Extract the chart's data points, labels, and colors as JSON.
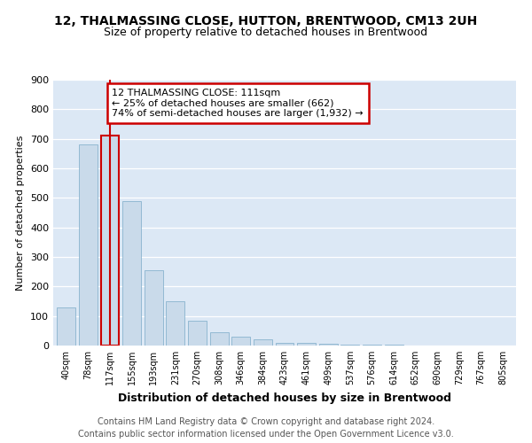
{
  "title": "12, THALMASSING CLOSE, HUTTON, BRENTWOOD, CM13 2UH",
  "subtitle": "Size of property relative to detached houses in Brentwood",
  "xlabel": "Distribution of detached houses by size in Brentwood",
  "ylabel": "Number of detached properties",
  "footer_line1": "Contains HM Land Registry data © Crown copyright and database right 2024.",
  "footer_line2": "Contains public sector information licensed under the Open Government Licence v3.0.",
  "bar_labels": [
    "40sqm",
    "78sqm",
    "117sqm",
    "155sqm",
    "193sqm",
    "231sqm",
    "270sqm",
    "308sqm",
    "346sqm",
    "384sqm",
    "423sqm",
    "461sqm",
    "499sqm",
    "537sqm",
    "576sqm",
    "614sqm",
    "652sqm",
    "690sqm",
    "729sqm",
    "767sqm",
    "805sqm"
  ],
  "bar_values": [
    130,
    680,
    710,
    490,
    255,
    150,
    85,
    45,
    30,
    20,
    10,
    8,
    5,
    4,
    3,
    2,
    1,
    1,
    1,
    1,
    0
  ],
  "bar_color": "#c9daea",
  "bar_edge_color": "#7aaac8",
  "highlight_bar_index": 2,
  "highlight_color": "#cc0000",
  "annotation_text": "12 THALMASSING CLOSE: 111sqm\n← 25% of detached houses are smaller (662)\n74% of semi-detached houses are larger (1,932) →",
  "annotation_box_color": "#cc0000",
  "ylim": [
    0,
    900
  ],
  "yticks": [
    0,
    100,
    200,
    300,
    400,
    500,
    600,
    700,
    800,
    900
  ],
  "plot_bg_color": "#dce8f5",
  "title_fontsize": 10,
  "subtitle_fontsize": 9,
  "annotation_fontsize": 8,
  "footer_fontsize": 7,
  "ylabel_fontsize": 8,
  "xlabel_fontsize": 9,
  "xtick_fontsize": 7,
  "ytick_fontsize": 8
}
